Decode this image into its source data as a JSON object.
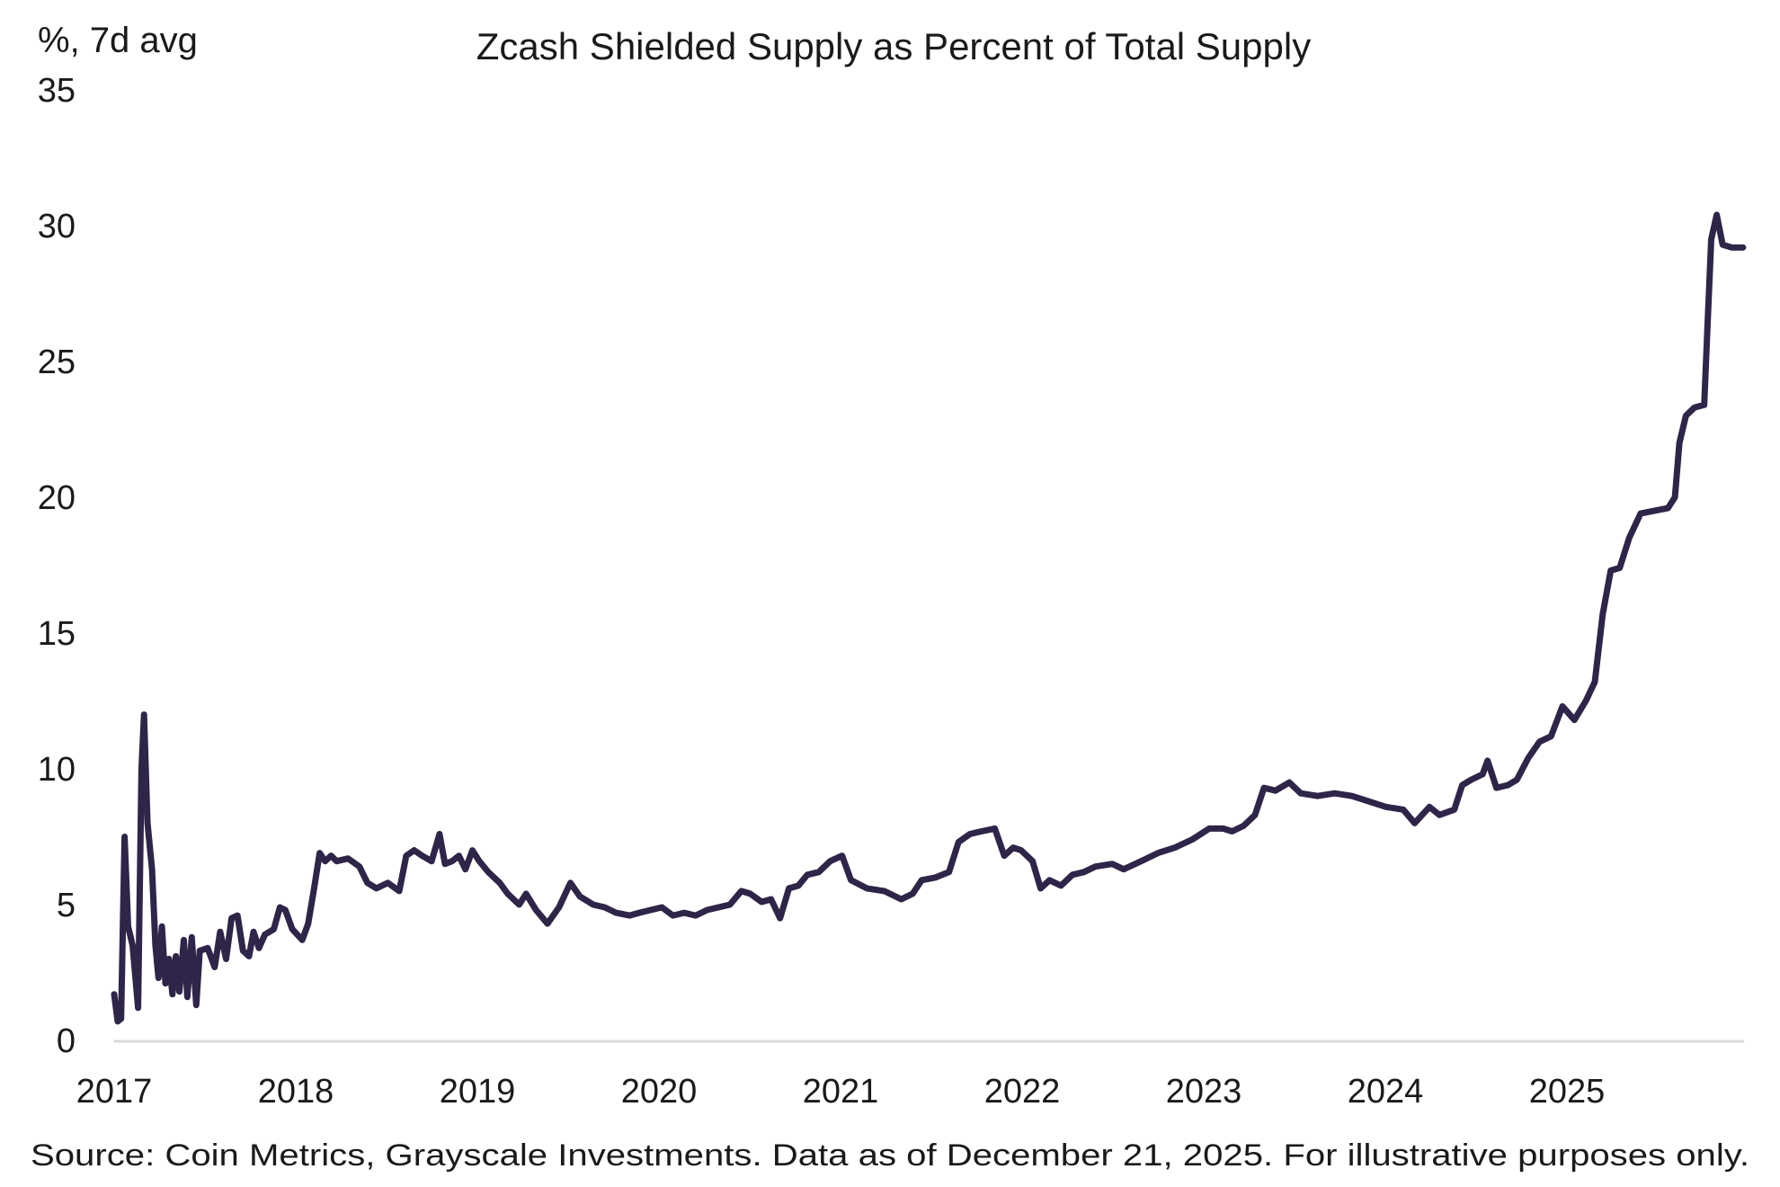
{
  "chart_data": {
    "type": "line",
    "title": "Zcash Shielded Supply as Percent of Total Supply",
    "ylabel": "%, 7d avg",
    "xlabel": "",
    "ylim": [
      0,
      35
    ],
    "yticks": [
      "0",
      "5",
      "10",
      "15",
      "20",
      "25",
      "30",
      "35"
    ],
    "xticks": [
      "2017",
      "2018",
      "2019",
      "2020",
      "2021",
      "2022",
      "2023",
      "2024",
      "2025"
    ],
    "grid": false,
    "line_color": "#2e2548",
    "axis_color": "#d9d9d9",
    "source": "Source: Coin Metrics, Grayscale Investments. Data as of December 21, 2025. For illustrative purposes only.",
    "series": [
      {
        "points": [
          [
            "2017-01-01",
            1.7
          ],
          [
            "2017-01-08",
            0.7
          ],
          [
            "2017-01-15",
            0.8
          ],
          [
            "2017-01-22",
            7.5
          ],
          [
            "2017-01-29",
            4.2
          ],
          [
            "2017-02-07",
            3.5
          ],
          [
            "2017-02-18",
            1.2
          ],
          [
            "2017-02-25",
            10.0
          ],
          [
            "2017-03-02",
            12.0
          ],
          [
            "2017-03-09",
            8.0
          ],
          [
            "2017-03-18",
            6.3
          ],
          [
            "2017-03-25",
            3.5
          ],
          [
            "2017-03-31",
            2.3
          ],
          [
            "2017-04-07",
            4.2
          ],
          [
            "2017-04-14",
            2.1
          ],
          [
            "2017-04-21",
            3.0
          ],
          [
            "2017-04-28",
            1.7
          ],
          [
            "2017-05-05",
            3.1
          ],
          [
            "2017-05-12",
            1.8
          ],
          [
            "2017-05-21",
            3.7
          ],
          [
            "2017-05-28",
            1.6
          ],
          [
            "2017-06-06",
            3.8
          ],
          [
            "2017-06-15",
            1.3
          ],
          [
            "2017-06-22",
            3.3
          ],
          [
            "2017-07-08",
            3.4
          ],
          [
            "2017-07-22",
            2.7
          ],
          [
            "2017-08-02",
            4.0
          ],
          [
            "2017-08-14",
            3.0
          ],
          [
            "2017-08-25",
            4.5
          ],
          [
            "2017-09-06",
            4.6
          ],
          [
            "2017-09-17",
            3.3
          ],
          [
            "2017-09-29",
            3.1
          ],
          [
            "2017-10-08",
            4.0
          ],
          [
            "2017-10-19",
            3.4
          ],
          [
            "2017-10-31",
            3.9
          ],
          [
            "2017-11-18",
            4.1
          ],
          [
            "2017-11-30",
            4.9
          ],
          [
            "2017-12-11",
            4.8
          ],
          [
            "2017-12-25",
            4.1
          ],
          [
            "2018-01-14",
            3.7
          ],
          [
            "2018-01-26",
            4.3
          ],
          [
            "2018-02-06",
            5.5
          ],
          [
            "2018-02-18",
            6.9
          ],
          [
            "2018-03-01",
            6.6
          ],
          [
            "2018-03-13",
            6.8
          ],
          [
            "2018-03-24",
            6.6
          ],
          [
            "2018-04-16",
            6.7
          ],
          [
            "2018-05-09",
            6.4
          ],
          [
            "2018-05-25",
            5.8
          ],
          [
            "2018-06-12",
            5.6
          ],
          [
            "2018-07-05",
            5.8
          ],
          [
            "2018-07-28",
            5.5
          ],
          [
            "2018-08-11",
            6.8
          ],
          [
            "2018-08-27",
            7.0
          ],
          [
            "2018-09-12",
            6.8
          ],
          [
            "2018-10-01",
            6.6
          ],
          [
            "2018-10-17",
            7.6
          ],
          [
            "2018-10-28",
            6.5
          ],
          [
            "2018-11-11",
            6.6
          ],
          [
            "2018-11-25",
            6.8
          ],
          [
            "2018-12-08",
            6.3
          ],
          [
            "2018-12-22",
            7.0
          ],
          [
            "2019-01-05",
            6.6
          ],
          [
            "2019-01-23",
            6.2
          ],
          [
            "2019-02-15",
            5.8
          ],
          [
            "2019-03-03",
            5.4
          ],
          [
            "2019-03-26",
            5.0
          ],
          [
            "2019-04-09",
            5.4
          ],
          [
            "2019-04-29",
            4.8
          ],
          [
            "2019-05-22",
            4.3
          ],
          [
            "2019-06-14",
            4.9
          ],
          [
            "2019-07-07",
            5.8
          ],
          [
            "2019-07-26",
            5.3
          ],
          [
            "2019-08-22",
            5.0
          ],
          [
            "2019-09-14",
            4.9
          ],
          [
            "2019-10-07",
            4.7
          ],
          [
            "2019-11-03",
            4.6
          ],
          [
            "2019-11-22",
            4.7
          ],
          [
            "2019-12-15",
            4.8
          ],
          [
            "2020-01-07",
            4.9
          ],
          [
            "2020-01-29",
            4.6
          ],
          [
            "2020-02-21",
            4.7
          ],
          [
            "2020-03-15",
            4.6
          ],
          [
            "2020-04-07",
            4.8
          ],
          [
            "2020-04-30",
            4.9
          ],
          [
            "2020-05-23",
            5.0
          ],
          [
            "2020-06-15",
            5.5
          ],
          [
            "2020-07-03",
            5.4
          ],
          [
            "2020-07-26",
            5.1
          ],
          [
            "2020-08-14",
            5.2
          ],
          [
            "2020-09-01",
            4.5
          ],
          [
            "2020-09-19",
            5.6
          ],
          [
            "2020-10-08",
            5.7
          ],
          [
            "2020-10-26",
            6.1
          ],
          [
            "2020-11-18",
            6.2
          ],
          [
            "2020-12-11",
            6.6
          ],
          [
            "2021-01-04",
            6.8
          ],
          [
            "2021-01-22",
            5.9
          ],
          [
            "2021-02-23",
            5.6
          ],
          [
            "2021-03-30",
            5.5
          ],
          [
            "2021-05-03",
            5.2
          ],
          [
            "2021-05-26",
            5.4
          ],
          [
            "2021-06-13",
            5.9
          ],
          [
            "2021-07-11",
            6.0
          ],
          [
            "2021-08-07",
            6.2
          ],
          [
            "2021-08-26",
            7.3
          ],
          [
            "2021-09-18",
            7.6
          ],
          [
            "2021-10-11",
            7.7
          ],
          [
            "2021-11-07",
            7.8
          ],
          [
            "2021-11-26",
            6.8
          ],
          [
            "2021-12-14",
            7.1
          ],
          [
            "2021-12-30",
            7.0
          ],
          [
            "2022-01-22",
            6.6
          ],
          [
            "2022-02-07",
            5.6
          ],
          [
            "2022-02-25",
            5.9
          ],
          [
            "2022-03-20",
            5.7
          ],
          [
            "2022-04-12",
            6.1
          ],
          [
            "2022-05-05",
            6.2
          ],
          [
            "2022-05-28",
            6.4
          ],
          [
            "2022-07-01",
            6.5
          ],
          [
            "2022-07-24",
            6.3
          ],
          [
            "2022-08-28",
            6.6
          ],
          [
            "2022-10-01",
            6.9
          ],
          [
            "2022-11-04",
            7.1
          ],
          [
            "2022-12-09",
            7.4
          ],
          [
            "2023-01-12",
            7.8
          ],
          [
            "2023-02-09",
            7.8
          ],
          [
            "2023-02-27",
            7.7
          ],
          [
            "2023-03-22",
            7.9
          ],
          [
            "2023-04-14",
            8.3
          ],
          [
            "2023-05-02",
            9.3
          ],
          [
            "2023-05-25",
            9.2
          ],
          [
            "2023-06-22",
            9.5
          ],
          [
            "2023-07-15",
            9.1
          ],
          [
            "2023-08-18",
            9.0
          ],
          [
            "2023-09-21",
            9.1
          ],
          [
            "2023-10-26",
            9.0
          ],
          [
            "2023-11-29",
            8.8
          ],
          [
            "2024-01-02",
            8.6
          ],
          [
            "2024-02-06",
            8.5
          ],
          [
            "2024-02-29",
            8.0
          ],
          [
            "2024-03-30",
            8.6
          ],
          [
            "2024-04-19",
            8.3
          ],
          [
            "2024-05-19",
            8.5
          ],
          [
            "2024-06-04",
            9.4
          ],
          [
            "2024-06-22",
            9.6
          ],
          [
            "2024-07-15",
            9.8
          ],
          [
            "2024-07-25",
            10.3
          ],
          [
            "2024-08-12",
            9.3
          ],
          [
            "2024-09-04",
            9.4
          ],
          [
            "2024-09-22",
            9.6
          ],
          [
            "2024-10-15",
            10.4
          ],
          [
            "2024-11-07",
            11.0
          ],
          [
            "2024-11-30",
            11.2
          ],
          [
            "2024-12-23",
            12.3
          ],
          [
            "2025-01-16",
            11.8
          ],
          [
            "2025-02-08",
            12.5
          ],
          [
            "2025-02-26",
            13.2
          ],
          [
            "2025-03-14",
            15.7
          ],
          [
            "2025-03-30",
            17.3
          ],
          [
            "2025-04-17",
            17.4
          ],
          [
            "2025-05-06",
            18.5
          ],
          [
            "2025-05-29",
            19.4
          ],
          [
            "2025-06-25",
            19.5
          ],
          [
            "2025-07-23",
            19.6
          ],
          [
            "2025-08-06",
            20.0
          ],
          [
            "2025-08-15",
            22.0
          ],
          [
            "2025-08-28",
            23.0
          ],
          [
            "2025-09-14",
            23.3
          ],
          [
            "2025-10-04",
            23.4
          ],
          [
            "2025-10-11",
            26.5
          ],
          [
            "2025-10-18",
            29.5
          ],
          [
            "2025-10-29",
            30.4
          ],
          [
            "2025-11-10",
            29.3
          ],
          [
            "2025-11-28",
            29.2
          ],
          [
            "2025-12-21",
            29.2
          ]
        ]
      }
    ]
  }
}
